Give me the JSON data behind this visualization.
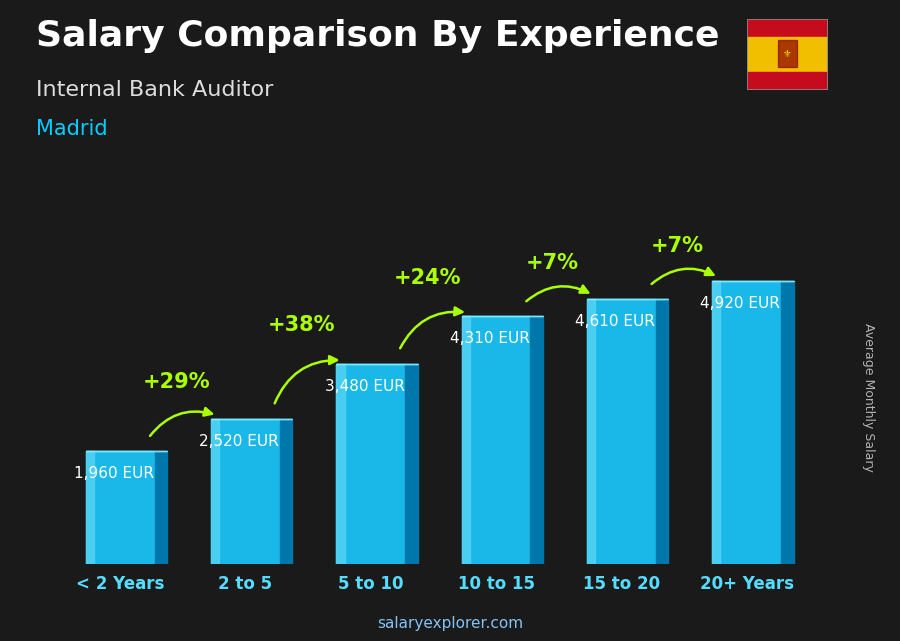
{
  "title": "Salary Comparison By Experience",
  "subtitle": "Internal Bank Auditor",
  "city": "Madrid",
  "ylabel": "Average Monthly Salary",
  "watermark": "salaryexplorer.com",
  "categories": [
    "< 2 Years",
    "2 to 5",
    "5 to 10",
    "10 to 15",
    "15 to 20",
    "20+ Years"
  ],
  "values": [
    1960,
    2520,
    3480,
    4310,
    4610,
    4920
  ],
  "value_labels": [
    "1,960 EUR",
    "2,520 EUR",
    "3,480 EUR",
    "4,310 EUR",
    "4,610 EUR",
    "4,920 EUR"
  ],
  "pct_changes": [
    null,
    "+29%",
    "+38%",
    "+24%",
    "+7%",
    "+7%"
  ],
  "bar_color_front": "#1ab8e8",
  "bar_color_highlight": "#55d4f5",
  "bar_color_side": "#0077aa",
  "bar_color_top": "#88eeff",
  "bg_color": "#1a1a1a",
  "title_color": "#ffffff",
  "subtitle_color": "#dddddd",
  "city_color": "#00cfff",
  "xlabel_color": "#55ddff",
  "ylabel_color": "#cccccc",
  "value_label_color": "#ffffff",
  "pct_color": "#aaff00",
  "arrow_color": "#aaff00",
  "watermark_color": "#88ccff",
  "title_fontsize": 26,
  "subtitle_fontsize": 16,
  "city_fontsize": 15,
  "xlabel_fontsize": 12,
  "value_label_fontsize": 11,
  "pct_fontsize": 15,
  "bar_width": 0.55,
  "bar_depth": 0.1,
  "ylim": [
    0,
    5800
  ]
}
